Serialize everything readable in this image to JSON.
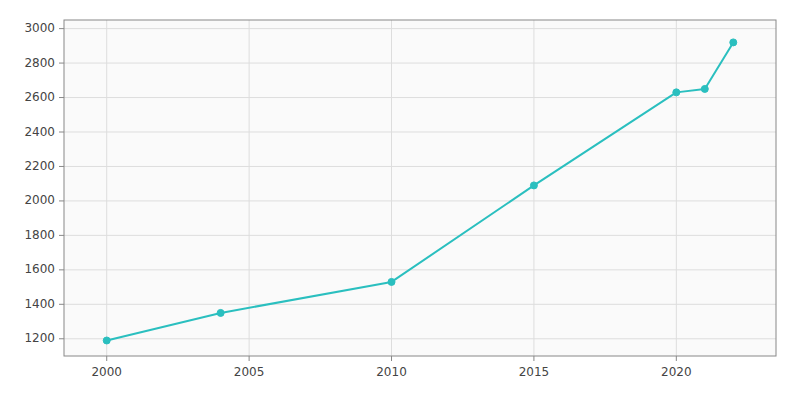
{
  "chart_data": {
    "type": "line",
    "x": [
      2000,
      2004,
      2010,
      2015,
      2020,
      2021,
      2022
    ],
    "values": [
      1190,
      1350,
      1530,
      2090,
      2630,
      2650,
      2920
    ],
    "color": "#2abfbf",
    "marker": "circle",
    "xlim": [
      1998.5,
      2023.5
    ],
    "ylim": [
      1100,
      3050
    ],
    "xticks": [
      2000,
      2005,
      2010,
      2015,
      2020
    ],
    "yticks": [
      1200,
      1400,
      1600,
      1800,
      2000,
      2200,
      2400,
      2600,
      2800,
      3000
    ],
    "grid": true
  }
}
